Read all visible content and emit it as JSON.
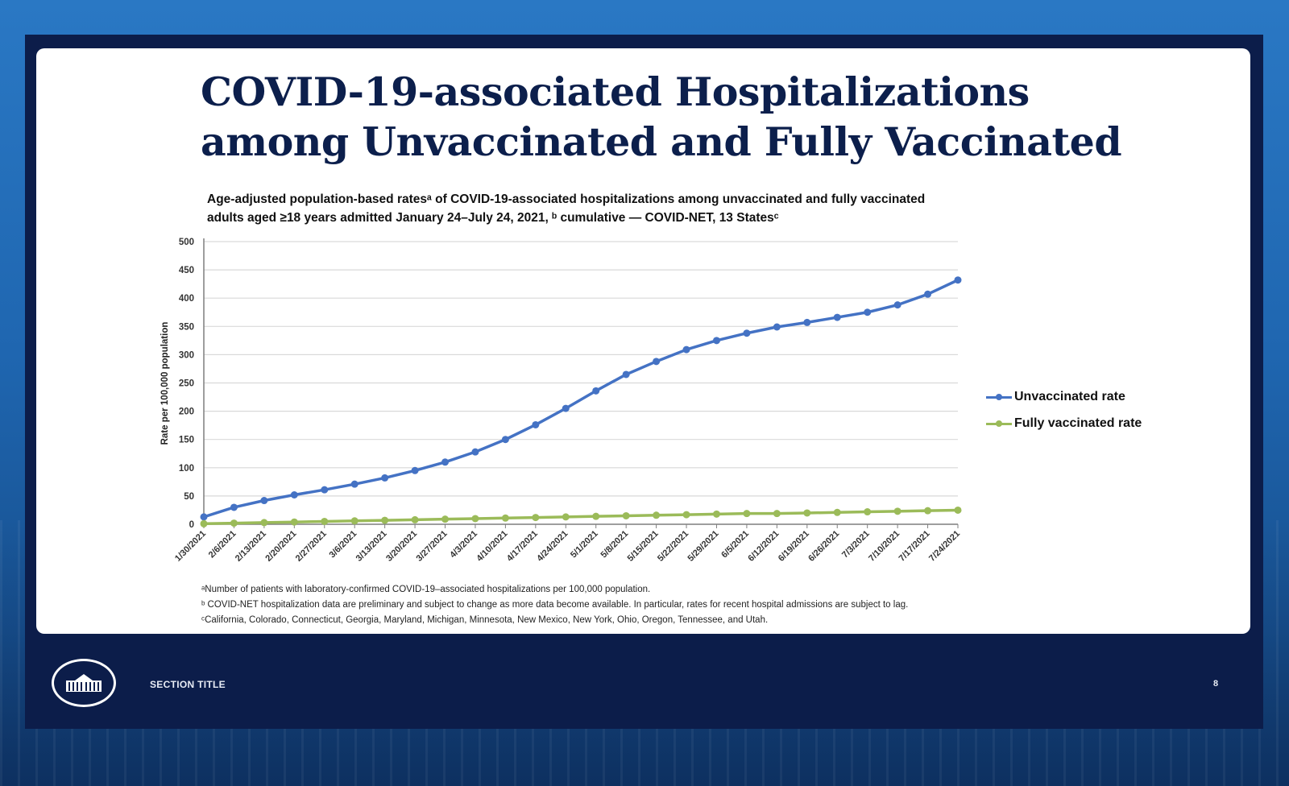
{
  "slide": {
    "title_lines": [
      "COVID-19-associated Hospitalizations",
      "among Unvaccinated and Fully Vaccinated"
    ],
    "footer_section": "SECTION TITLE",
    "page_number": "8"
  },
  "chart_data": {
    "type": "line",
    "title_lines": [
      "Age-adjusted population-based ratesᵃ of COVID-19-associated hospitalizations among unvaccinated and fully vaccinated",
      "adults aged ≥18 years admitted January 24–July 24, 2021, ᵇ cumulative — COVID-NET, 13 Statesᶜ"
    ],
    "xlabel": "",
    "ylabel": "Rate per 100,000 population",
    "ylim": [
      0,
      500
    ],
    "yticks": [
      0,
      50,
      100,
      150,
      200,
      250,
      300,
      350,
      400,
      450,
      500
    ],
    "grid": true,
    "legend_position": "right",
    "categories": [
      "1/30/2021",
      "2/6/2021",
      "2/13/2021",
      "2/20/2021",
      "2/27/2021",
      "3/6/2021",
      "3/13/2021",
      "3/20/2021",
      "3/27/2021",
      "4/3/2021",
      "4/10/2021",
      "4/17/2021",
      "4/24/2021",
      "5/1/2021",
      "5/8/2021",
      "5/15/2021",
      "5/22/2021",
      "5/29/2021",
      "6/5/2021",
      "6/12/2021",
      "6/19/2021",
      "6/26/2021",
      "7/3/2021",
      "7/10/2021",
      "7/17/2021",
      "7/24/2021"
    ],
    "series": [
      {
        "name": "Unvaccinated rate",
        "color": "#4472c4",
        "values": [
          13,
          30,
          42,
          52,
          61,
          71,
          82,
          95,
          110,
          128,
          150,
          176,
          205,
          236,
          265,
          288,
          309,
          325,
          338,
          349,
          357,
          366,
          375,
          388,
          407,
          432
        ]
      },
      {
        "name": "Fully vaccinated rate",
        "color": "#9bbb59",
        "values": [
          1,
          2,
          3,
          4,
          5,
          6,
          7,
          8,
          9,
          10,
          11,
          12,
          13,
          14,
          15,
          16,
          17,
          18,
          19,
          19,
          20,
          21,
          22,
          23,
          24,
          25
        ]
      }
    ],
    "footnotes": [
      "ᵃNumber of patients with laboratory-confirmed COVID-19–associated hospitalizations per 100,000 population.",
      "ᵇ COVID-NET hospitalization data are preliminary and subject to change as more data become available. In particular, rates for recent hospital admissions are subject to lag.",
      "ᶜCalifornia, Colorado, Connecticut, Georgia, Maryland, Michigan, Minnesota, New Mexico, New York, Ohio, Oregon, Tennessee, and Utah."
    ]
  },
  "icons": {
    "footer_logo": "white-house-seal-icon"
  }
}
